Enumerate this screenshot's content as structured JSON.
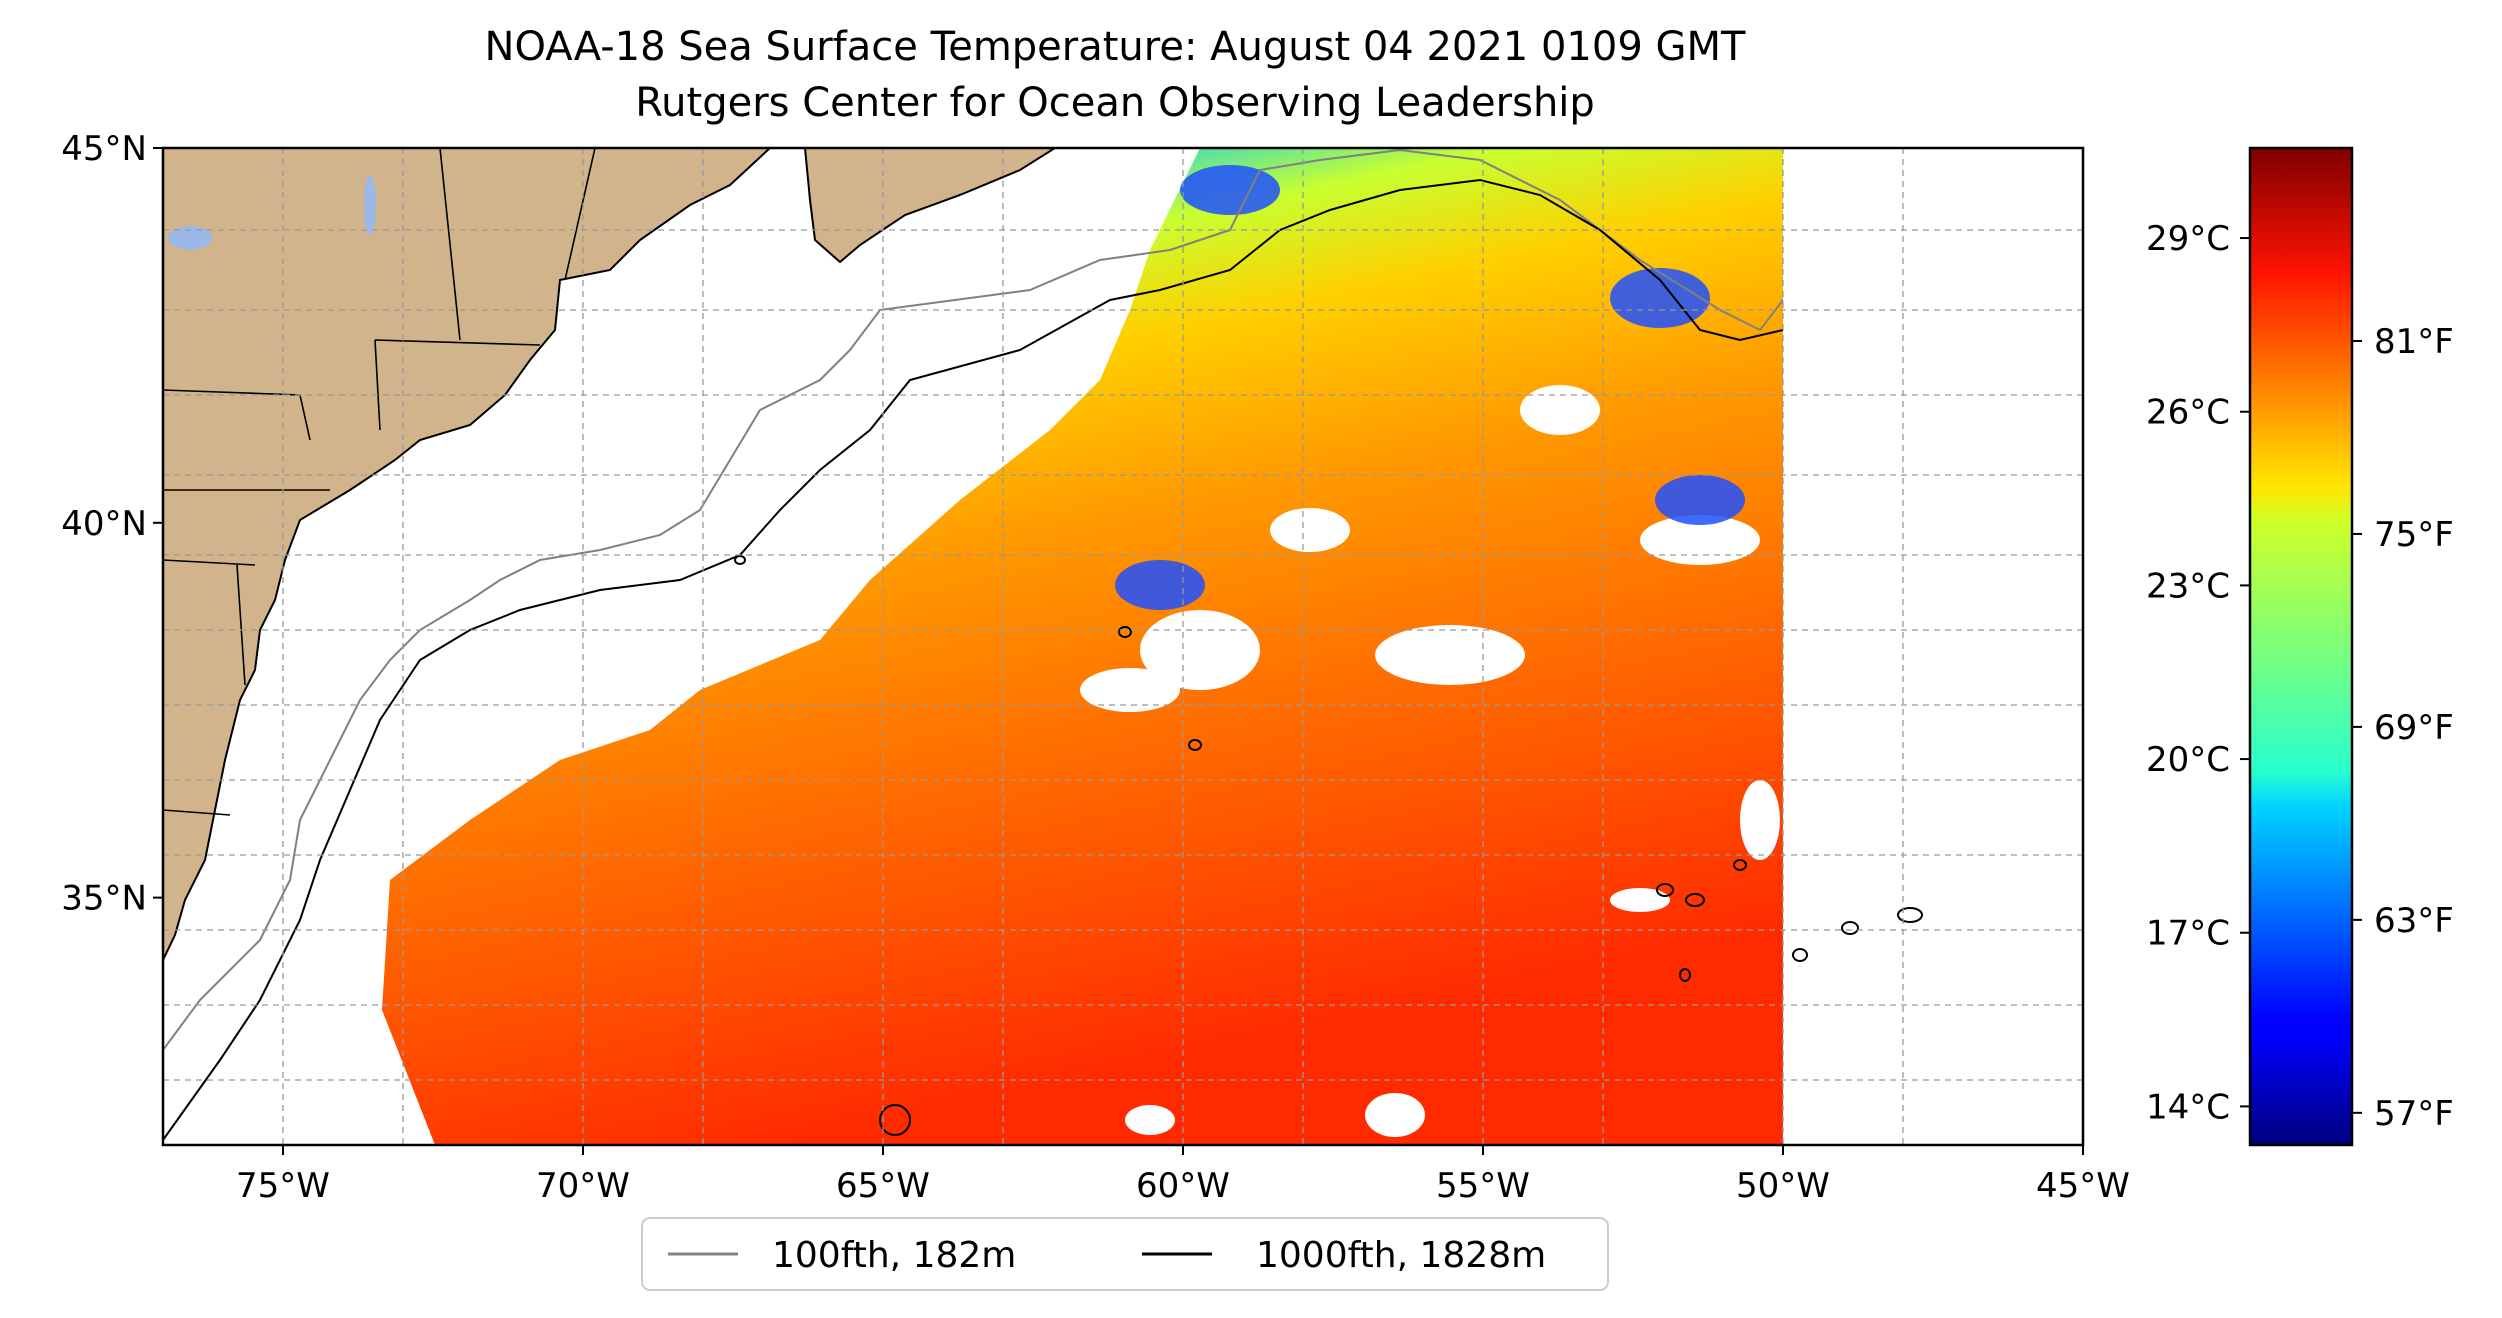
{
  "title": "NOAA-18 Sea Surface Temperature: August 04 2021 0109 GMT",
  "subtitle": "Rutgers Center for Ocean Observing Leadership",
  "map": {
    "lon_range": [
      -77,
      -45
    ],
    "lat_range": [
      31.7,
      45
    ],
    "lon_ticks": [
      {
        "value": -75,
        "label": "75°W"
      },
      {
        "value": -70,
        "label": "70°W"
      },
      {
        "value": -65,
        "label": "65°W"
      },
      {
        "value": -60,
        "label": "60°W"
      },
      {
        "value": -55,
        "label": "55°W"
      },
      {
        "value": -50,
        "label": "50°W"
      },
      {
        "value": -45,
        "label": "45°W"
      }
    ],
    "lat_ticks": [
      {
        "value": 45,
        "label": "45°N"
      },
      {
        "value": 40,
        "label": "40°N"
      },
      {
        "value": 35,
        "label": "35°N"
      }
    ],
    "land_color": "#d2b48c",
    "gridlines": true
  },
  "colorbar": {
    "colormap": "jet",
    "celsius_ticks": [
      {
        "value": 29,
        "label": "29°C"
      },
      {
        "value": 26,
        "label": "26°C"
      },
      {
        "value": 23,
        "label": "23°C"
      },
      {
        "value": 20,
        "label": "20°C"
      },
      {
        "value": 17,
        "label": "17°C"
      },
      {
        "value": 14,
        "label": "14°C"
      }
    ],
    "fahrenheit_ticks": [
      {
        "value": 81,
        "label": "81°F"
      },
      {
        "value": 75,
        "label": "75°F"
      },
      {
        "value": 69,
        "label": "69°F"
      },
      {
        "value": 63,
        "label": "63°F"
      },
      {
        "value": 57,
        "label": "57°F"
      }
    ],
    "range_f": [
      56,
      87
    ]
  },
  "legend": {
    "placement": "bottom-center",
    "items": [
      {
        "label": "100fth, 182m",
        "color": "#808080"
      },
      {
        "label": "1000fth, 1828m",
        "color": "#000000"
      }
    ]
  }
}
